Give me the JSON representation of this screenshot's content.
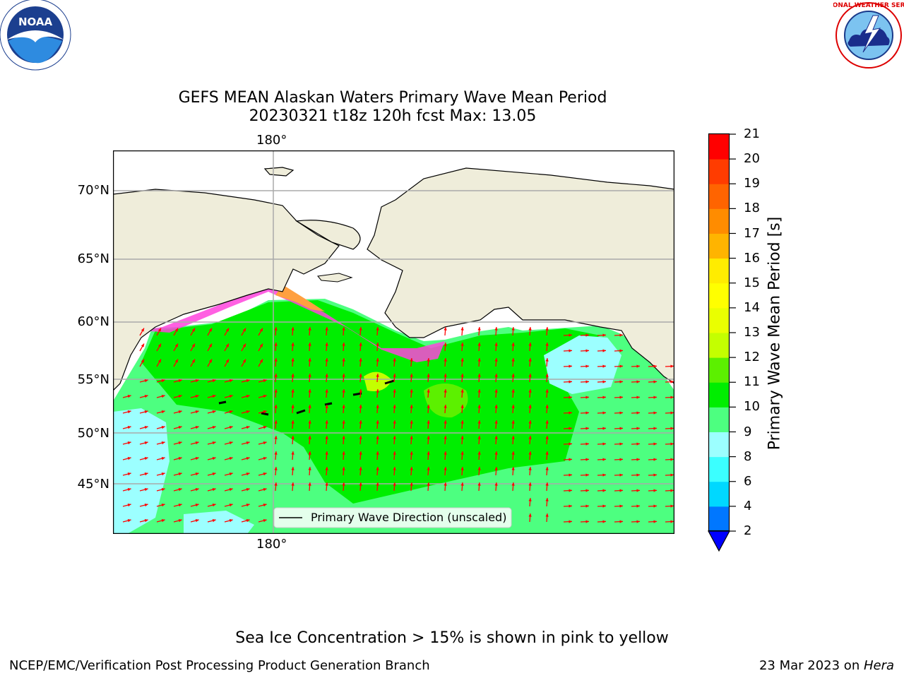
{
  "title": {
    "line1": "GEFS MEAN Alaskan Waters Primary Wave Mean Period",
    "line2": "20230321 t18z 120h fcst   Max: 13.05"
  },
  "map": {
    "lon_labels": [
      "180°",
      "180°"
    ],
    "lat_labels": [
      "70°N",
      "65°N",
      "60°N",
      "55°N",
      "50°N",
      "45°N"
    ],
    "legend_text": "Primary Wave Direction (unscaled)",
    "arrow_color": "#ff0000",
    "land_color": "#efedda"
  },
  "colorbar": {
    "label": "Primary Wave Mean Period [s]",
    "ticks": [
      "2",
      "4",
      "6",
      "8",
      "9",
      "10",
      "11",
      "12",
      "13",
      "14",
      "15",
      "16",
      "17",
      "18",
      "19",
      "20",
      "21"
    ],
    "colors": [
      "#0077ff",
      "#00d8ff",
      "#3bffff",
      "#9cffff",
      "#4dff80",
      "#00ee00",
      "#5cf000",
      "#c4ff00",
      "#eaff00",
      "#ffff00",
      "#ffec00",
      "#ffb400",
      "#ff8c00",
      "#ff6400",
      "#ff3c00",
      "#ff0000"
    ],
    "under_color": "#0000ff"
  },
  "footnote": "Sea Ice Concentration > 15% is shown in pink to yellow",
  "credit": "NCEP/EMC/Verification Post Processing Product Generation Branch",
  "date": {
    "text": "23 Mar 2023 on ",
    "host": "Hera"
  },
  "logos": {
    "left": "NOAA",
    "right": "NATIONAL WEATHER SERVICE"
  }
}
